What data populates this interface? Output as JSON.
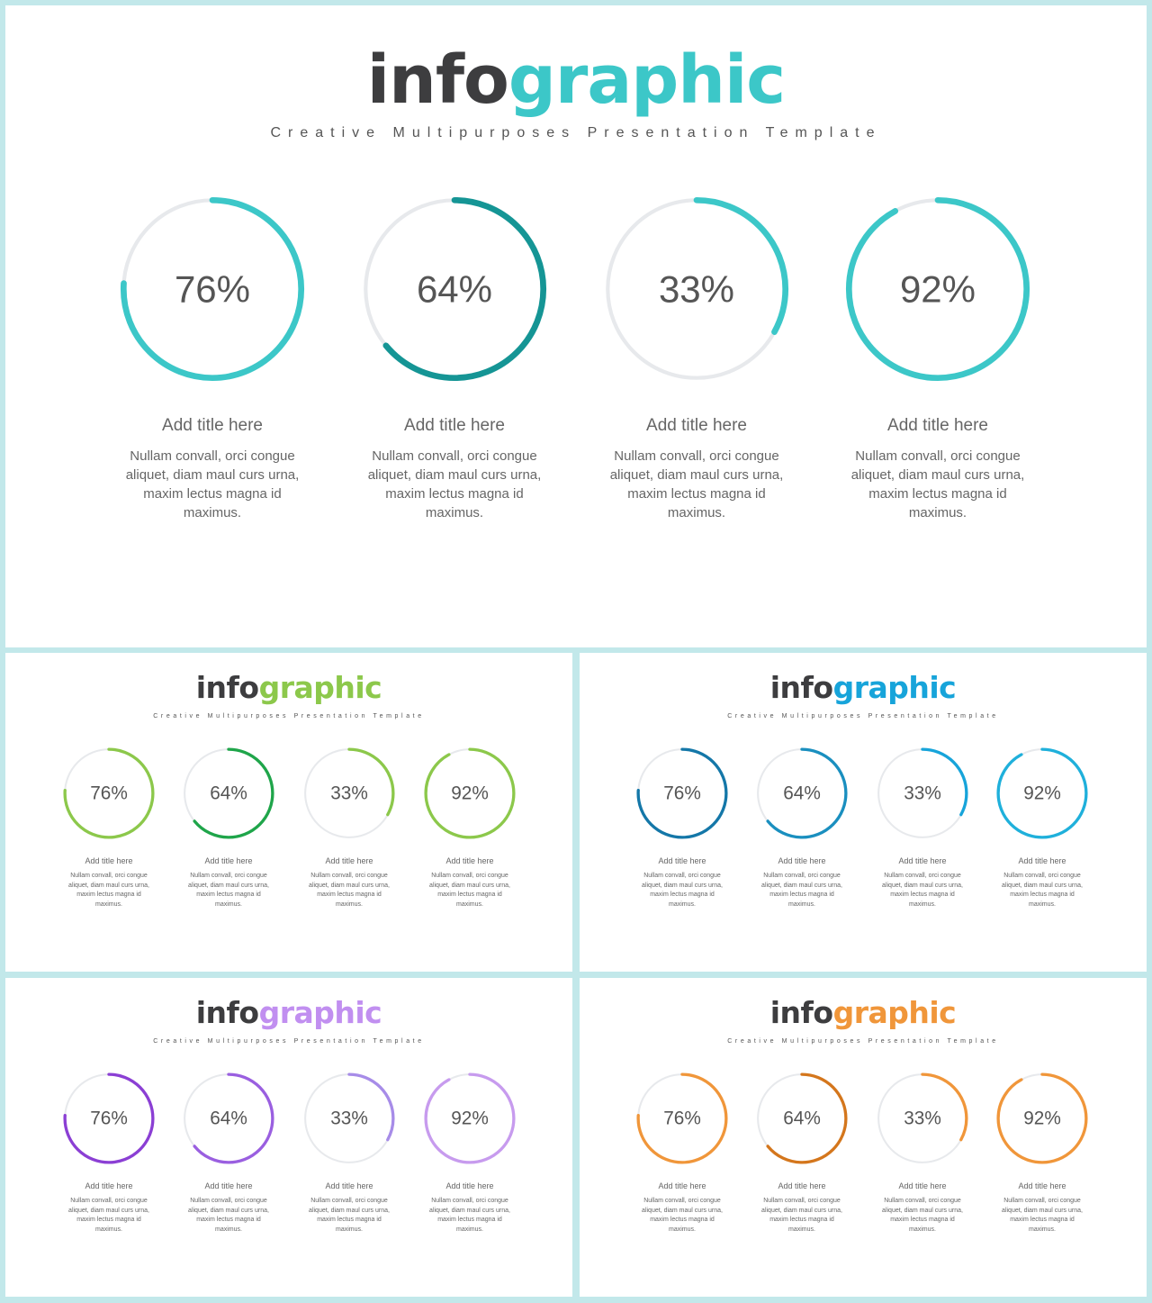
{
  "slides": [
    {
      "title_dark": "info",
      "title_accent": "graphic",
      "accent": "#3cc7c8",
      "subtitle": "Creative Multipurposes Presentation Template",
      "items": [
        {
          "percent": 76,
          "label": "76%",
          "color": "#3cc7c8",
          "title": "Add title here",
          "desc": "Nullam convall, orci congue aliquet, diam maul curs urna, maxim lectus magna id maximus."
        },
        {
          "percent": 64,
          "label": "64%",
          "color": "#159595",
          "title": "Add title here",
          "desc": "Nullam convall, orci congue aliquet, diam maul curs urna, maxim lectus magna id maximus."
        },
        {
          "percent": 33,
          "label": "33%",
          "color": "#3cc7c8",
          "title": "Add title here",
          "desc": "Nullam convall, orci congue aliquet, diam maul curs urna, maxim lectus magna id maximus."
        },
        {
          "percent": 92,
          "label": "92%",
          "color": "#3cc7c8",
          "title": "Add title here",
          "desc": "Nullam convall, orci congue aliquet, diam maul curs urna, maxim lectus magna id maximus."
        }
      ]
    },
    {
      "title_dark": "info",
      "title_accent": "graphic",
      "accent": "#8cc84b",
      "subtitle": "Creative Multipurposes Presentation Template",
      "items": [
        {
          "percent": 76,
          "label": "76%",
          "color": "#8cc84b",
          "title": "Add title here",
          "desc": "Nullam convall, orci congue aliquet, diam maul curs urna, maxim lectus magna id maximus."
        },
        {
          "percent": 64,
          "label": "64%",
          "color": "#1fa54a",
          "title": "Add title here",
          "desc": "Nullam convall, orci congue aliquet, diam maul curs urna, maxim lectus magna id maximus."
        },
        {
          "percent": 33,
          "label": "33%",
          "color": "#8cc84b",
          "title": "Add title here",
          "desc": "Nullam convall, orci congue aliquet, diam maul curs urna, maxim lectus magna id maximus."
        },
        {
          "percent": 92,
          "label": "92%",
          "color": "#8cc84b",
          "title": "Add title here",
          "desc": "Nullam convall, orci congue aliquet, diam maul curs urna, maxim lectus magna id maximus."
        }
      ]
    },
    {
      "title_dark": "info",
      "title_accent": "graphic",
      "accent": "#17a4da",
      "subtitle": "Creative Multipurposes Presentation Template",
      "items": [
        {
          "percent": 76,
          "label": "76%",
          "color": "#1477a8",
          "title": "Add title here",
          "desc": "Nullam convall, orci congue aliquet, diam maul curs urna, maxim lectus magna id maximus."
        },
        {
          "percent": 64,
          "label": "64%",
          "color": "#1a8fbf",
          "title": "Add title here",
          "desc": "Nullam convall, orci congue aliquet, diam maul curs urna, maxim lectus magna id maximus."
        },
        {
          "percent": 33,
          "label": "33%",
          "color": "#17a4da",
          "title": "Add title here",
          "desc": "Nullam convall, orci congue aliquet, diam maul curs urna, maxim lectus magna id maximus."
        },
        {
          "percent": 92,
          "label": "92%",
          "color": "#1fb0db",
          "title": "Add title here",
          "desc": "Nullam convall, orci congue aliquet, diam maul curs urna, maxim lectus magna id maximus."
        }
      ]
    },
    {
      "title_dark": "info",
      "title_accent": "graphic",
      "accent": "#c18ff0",
      "subtitle": "Creative Multipurposes Presentation Template",
      "items": [
        {
          "percent": 76,
          "label": "76%",
          "color": "#8b3fd4",
          "title": "Add title here",
          "desc": "Nullam convall, orci congue aliquet, diam maul curs urna, maxim lectus magna id maximus."
        },
        {
          "percent": 64,
          "label": "64%",
          "color": "#9a5fe0",
          "title": "Add title here",
          "desc": "Nullam convall, orci congue aliquet, diam maul curs urna, maxim lectus magna id maximus."
        },
        {
          "percent": 33,
          "label": "33%",
          "color": "#a78ce8",
          "title": "Add title here",
          "desc": "Nullam convall, orci congue aliquet, diam maul curs urna, maxim lectus magna id maximus."
        },
        {
          "percent": 92,
          "label": "92%",
          "color": "#c79bee",
          "title": "Add title here",
          "desc": "Nullam convall, orci congue aliquet, diam maul curs urna, maxim lectus magna id maximus."
        }
      ]
    },
    {
      "title_dark": "info",
      "title_accent": "graphic",
      "accent": "#f0963a",
      "subtitle": "Creative Multipurposes Presentation Template",
      "items": [
        {
          "percent": 76,
          "label": "76%",
          "color": "#f0963a",
          "title": "Add title here",
          "desc": "Nullam convall, orci congue aliquet, diam maul curs urna, maxim lectus magna id maximus."
        },
        {
          "percent": 64,
          "label": "64%",
          "color": "#d4761c",
          "title": "Add title here",
          "desc": "Nullam convall, orci congue aliquet, diam maul curs urna, maxim lectus magna id maximus."
        },
        {
          "percent": 33,
          "label": "33%",
          "color": "#f0963a",
          "title": "Add title here",
          "desc": "Nullam convall, orci congue aliquet, diam maul curs urna, maxim lectus magna id maximus."
        },
        {
          "percent": 92,
          "label": "92%",
          "color": "#f0963a",
          "title": "Add title here",
          "desc": "Nullam convall, orci congue aliquet, diam maul curs urna, maxim lectus magna id maximus."
        }
      ]
    }
  ]
}
